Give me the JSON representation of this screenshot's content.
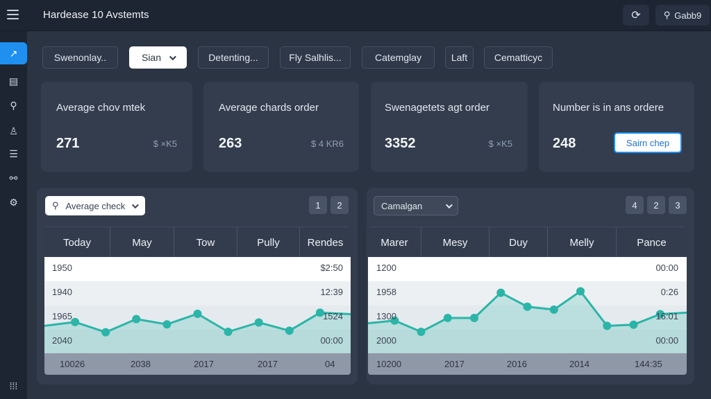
{
  "header": {
    "title": "Hardease 10 Avstemts",
    "user_label": "Gabb9"
  },
  "icons": {
    "menu": "hamburger-icon",
    "sync": "sync-icon",
    "user": "user-icon",
    "sidebar": [
      "analytics-icon",
      "document-icon",
      "search-icon",
      "users-icon",
      "list-icon",
      "link-icon",
      "gear-icon",
      "apps-icon"
    ]
  },
  "accent": "#1f8ff0",
  "series_color": "#2bb5a8",
  "filters": [
    {
      "label": "Swenonlay.."
    },
    {
      "label": "Sian"
    },
    {
      "label": "Detenting..."
    },
    {
      "label": "Fly Salhlis..."
    },
    {
      "label": "Catemglay"
    },
    {
      "label": "Laft"
    },
    {
      "label": "Cematticyc"
    }
  ],
  "cards": [
    {
      "label": "Average chov mtek",
      "value": "271",
      "sub": "$ ×K5"
    },
    {
      "label": "Average chards order",
      "value": "263",
      "sub": "$ 4 KR6"
    },
    {
      "label": "Swenagetets agt order",
      "value": "3352",
      "sub": "$ ×K5"
    },
    {
      "label": "Number is in ans ordere",
      "value": "248",
      "button": "Sairn chep"
    }
  ],
  "panels": [
    {
      "select": "Average check",
      "pager": [
        "1",
        "2"
      ],
      "columns": [
        "Today",
        "May",
        "Tow",
        "Pully",
        "Rendes"
      ],
      "rows": [
        {
          "left": "1950",
          "right": "$2:50"
        },
        {
          "left": "1940",
          "right": "12:39"
        },
        {
          "left": "1965",
          "right": "1524"
        },
        {
          "left": "2040",
          "right": "00:00"
        }
      ],
      "footer": [
        "10026",
        "2038",
        "2017",
        "2017",
        "04"
      ],
      "series": [
        0.62,
        0.72,
        0.45,
        0.8,
        0.66,
        0.94,
        0.46,
        0.71,
        0.49,
        0.97,
        0.93
      ]
    },
    {
      "select": "Camalgan",
      "pager": [
        "4",
        "2",
        "3"
      ],
      "columns": [
        "Marer",
        "Mesy",
        "Duy",
        "Melly",
        "Pance"
      ],
      "rows": [
        {
          "left": "1200",
          "right": "00:00"
        },
        {
          "left": "1958",
          "right": "0:26"
        },
        {
          "left": "1300",
          "right": "16:01"
        },
        {
          "left": "2000",
          "right": "00:00"
        }
      ],
      "footer": [
        "10200",
        "2017",
        "2016",
        "2014",
        "144:35"
      ],
      "series": [
        0.69,
        0.76,
        0.46,
        0.83,
        0.83,
        1.5,
        1.13,
        1.05,
        1.54,
        0.62,
        0.65,
        0.93,
        0.97
      ]
    }
  ]
}
